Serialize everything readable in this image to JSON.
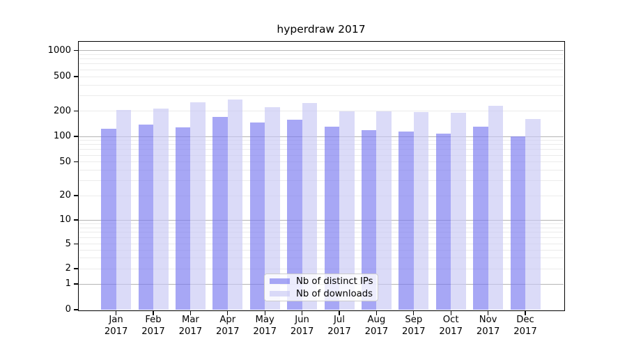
{
  "chart_data": {
    "type": "bar",
    "title": "hyperdraw 2017",
    "categories": [
      "Jan",
      "Feb",
      "Mar",
      "Apr",
      "May",
      "Jun",
      "Jul",
      "Aug",
      "Sep",
      "Oct",
      "Nov",
      "Dec"
    ],
    "year_label": "2017",
    "series": [
      {
        "name": "Nb of distinct IPs",
        "color": "#7979f0",
        "values": [
          123,
          137,
          129,
          171,
          146,
          159,
          131,
          118,
          114,
          108,
          131,
          100
        ]
      },
      {
        "name": "Nb of downloads",
        "color": "#c9c9f5",
        "values": [
          205,
          212,
          250,
          273,
          223,
          247,
          200,
          198,
          194,
          191,
          230,
          160
        ]
      }
    ],
    "bar_alpha": 0.66,
    "xlabel": "",
    "ylabel": "",
    "yscale": "symlog",
    "ylim": [
      0,
      1270
    ],
    "ytick_values": [
      0,
      1,
      2,
      5,
      10,
      20,
      50,
      100,
      200,
      500,
      1000
    ],
    "ytick_labels": [
      "0",
      "1",
      "2",
      "5",
      "10",
      "20",
      "50",
      "100",
      "200",
      "500",
      "1000"
    ],
    "grid": "horizontal major and minor, behind bars",
    "legend_position": "inside lower center",
    "colors": {
      "ips_bar_effective": "#a8a8f5",
      "downloads_bar_effective": "#dbdbf8",
      "major_grid": "#b4b4b4",
      "minor_grid": "#ebebeb",
      "axis": "#000000",
      "legend_border": "#cccccc",
      "text": "#000000"
    }
  }
}
